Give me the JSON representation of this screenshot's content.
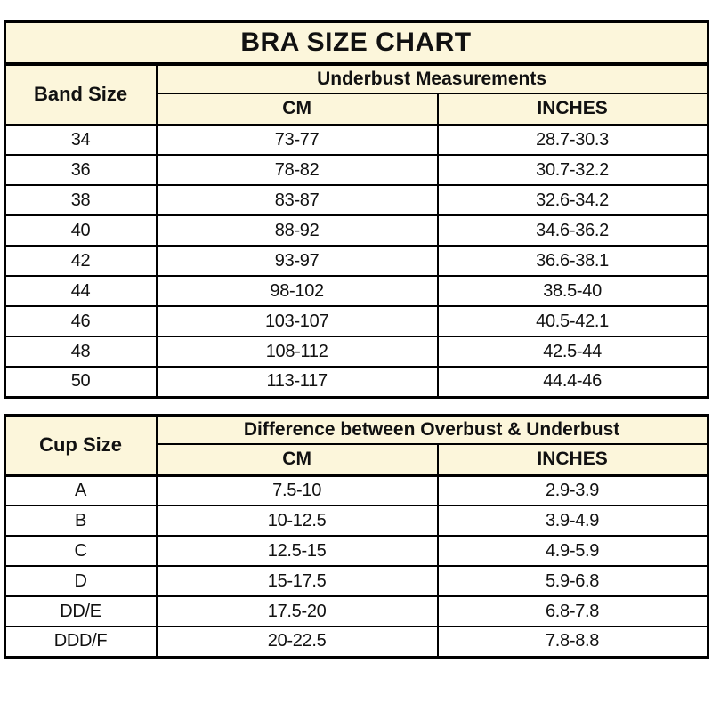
{
  "colors": {
    "header_cell_bg": "#FCF6DB",
    "data_row_bg": "#FFFFFF",
    "border": "#000000",
    "text": "#111111"
  },
  "chart_data": [
    {
      "type": "table",
      "title": "BRA SIZE CHART",
      "header": {
        "row_label": "Band Size",
        "group": "Underbust Measurements",
        "sub": [
          "CM",
          "INCHES"
        ]
      },
      "rows": [
        [
          "34",
          "73-77",
          "28.7-30.3"
        ],
        [
          "36",
          "78-82",
          "30.7-32.2"
        ],
        [
          "38",
          "83-87",
          "32.6-34.2"
        ],
        [
          "40",
          "88-92",
          "34.6-36.2"
        ],
        [
          "42",
          "93-97",
          "36.6-38.1"
        ],
        [
          "44",
          "98-102",
          "38.5-40"
        ],
        [
          "46",
          "103-107",
          "40.5-42.1"
        ],
        [
          "48",
          "108-112",
          "42.5-44"
        ],
        [
          "50",
          "113-117",
          "44.4-46"
        ]
      ]
    },
    {
      "type": "table",
      "title": "",
      "header": {
        "row_label": "Cup Size",
        "group": "Difference between Overbust & Underbust",
        "sub": [
          "CM",
          "INCHES"
        ]
      },
      "rows": [
        [
          "A",
          "7.5-10",
          "2.9-3.9"
        ],
        [
          "B",
          "10-12.5",
          "3.9-4.9"
        ],
        [
          "C",
          "12.5-15",
          "4.9-5.9"
        ],
        [
          "D",
          "15-17.5",
          "5.9-6.8"
        ],
        [
          "DD/E",
          "17.5-20",
          "6.8-7.8"
        ],
        [
          "DDD/F",
          "20-22.5",
          "7.8-8.8"
        ]
      ]
    }
  ]
}
